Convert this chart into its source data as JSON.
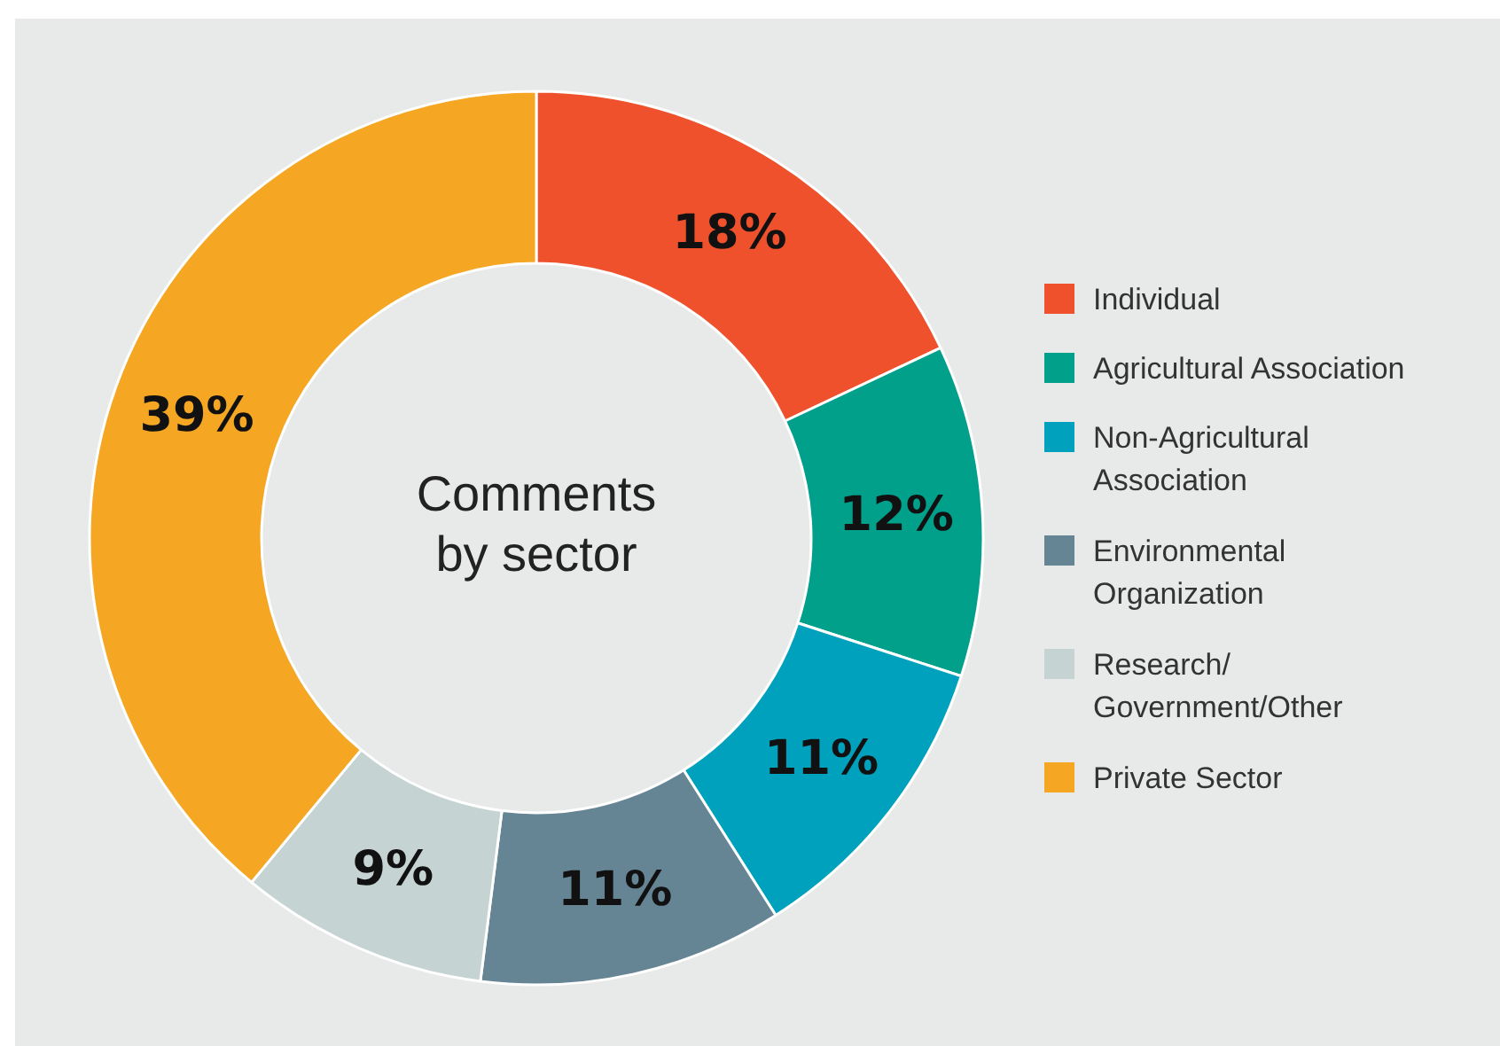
{
  "chart_data": {
    "type": "donut",
    "title": "Comments\nby sector",
    "categories": [
      "Individual",
      "Agricultural Association",
      "Non-Agricultural\nAssociation",
      "Environmental\nOrganization",
      "Research/\nGovernment/Other",
      "Private Sector"
    ],
    "values": [
      18,
      12,
      11,
      11,
      9,
      39
    ],
    "value_labels": [
      "18%",
      "12%",
      "11%",
      "11%",
      "9%",
      "39%"
    ],
    "colors": [
      "#ee512b",
      "#00a08a",
      "#00a1bd",
      "#668594",
      "#c5d3d3",
      "#f5a623"
    ],
    "legend": "right"
  }
}
